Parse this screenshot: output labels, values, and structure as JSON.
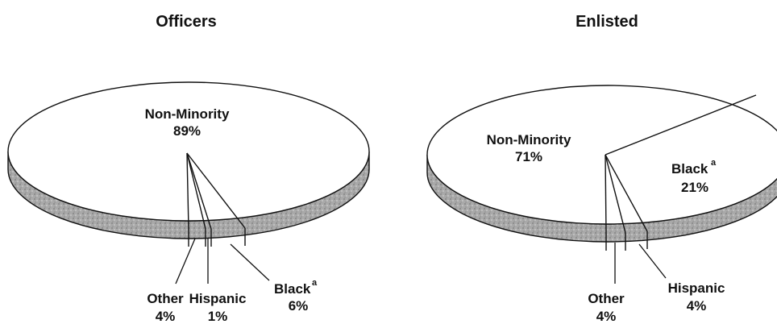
{
  "chart_data": [
    {
      "type": "pie",
      "title": "Officers",
      "categories": [
        "Non-Minority",
        "Black",
        "Hispanic",
        "Other"
      ],
      "values": [
        89,
        6,
        1,
        4
      ],
      "labels": [
        {
          "name": "Non-Minority",
          "value": "89%",
          "marker": ""
        },
        {
          "name": "Black",
          "value": "6%",
          "marker": "a"
        },
        {
          "name": "Hispanic",
          "value": "1%",
          "marker": ""
        },
        {
          "name": "Other",
          "value": "4%",
          "marker": ""
        }
      ],
      "style": "3d-pie",
      "colors": {
        "top": "#ffffff",
        "side": "#a9a9a9",
        "outline": "#111111"
      }
    },
    {
      "type": "pie",
      "title": "Enlisted",
      "categories": [
        "Non-Minority",
        "Black",
        "Hispanic",
        "Other"
      ],
      "values": [
        71,
        21,
        4,
        4
      ],
      "labels": [
        {
          "name": "Non-Minority",
          "value": "71%",
          "marker": ""
        },
        {
          "name": "Black",
          "value": "21%",
          "marker": "a"
        },
        {
          "name": "Hispanic",
          "value": "4%",
          "marker": ""
        },
        {
          "name": "Other",
          "value": "4%",
          "marker": ""
        }
      ],
      "style": "3d-pie",
      "colors": {
        "top": "#ffffff",
        "side": "#a9a9a9",
        "outline": "#111111"
      }
    }
  ]
}
